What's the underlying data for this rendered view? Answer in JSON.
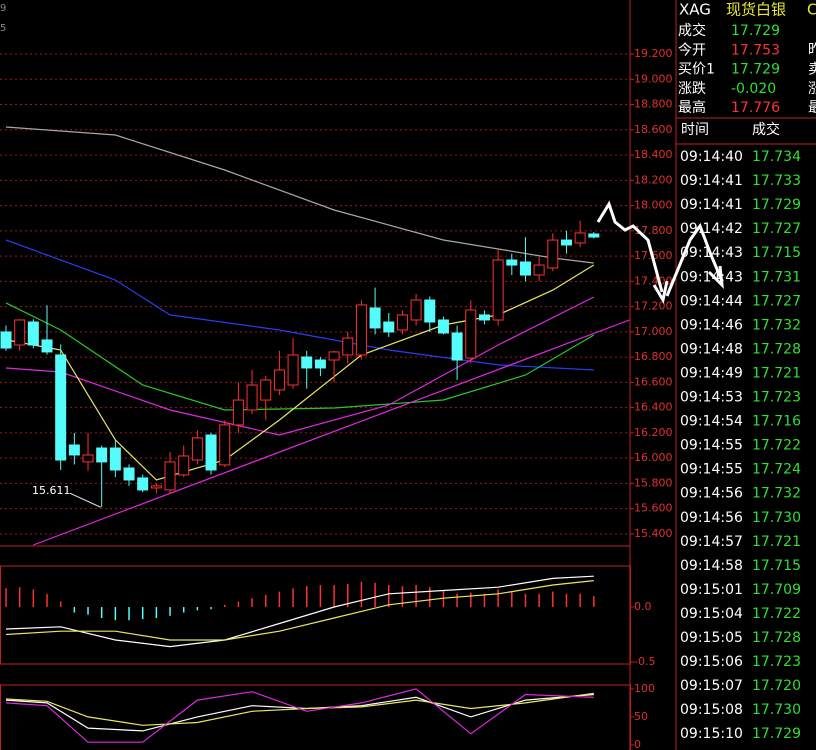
{
  "edge_text": [
    "9",
    "5"
  ],
  "chart_data": [
    {
      "type": "candlestick",
      "ylim": [
        15.312,
        19.628
      ],
      "yticks": [
        {
          "value": 15.4,
          "label": "15.400"
        },
        {
          "value": 15.6,
          "label": "15.600"
        },
        {
          "value": 15.8,
          "label": "15.800"
        },
        {
          "value": 16.0,
          "label": "16.000"
        },
        {
          "value": 16.2,
          "label": "16.200"
        },
        {
          "value": 16.4,
          "label": "16.400"
        },
        {
          "value": 16.6,
          "label": "16.600"
        },
        {
          "value": 16.8,
          "label": "16.800"
        },
        {
          "value": 17.0,
          "label": "17.000"
        },
        {
          "value": 17.2,
          "label": "17.200"
        },
        {
          "value": 17.4,
          "label": "17.400"
        },
        {
          "value": 17.6,
          "label": "17.600"
        },
        {
          "value": 17.8,
          "label": "17.800"
        },
        {
          "value": 18.0,
          "label": "18.000"
        },
        {
          "value": 18.2,
          "label": "18.200"
        },
        {
          "value": 18.4,
          "label": "18.400"
        },
        {
          "value": 18.6,
          "label": "18.600"
        },
        {
          "value": 18.8,
          "label": "18.800"
        },
        {
          "value": 19.0,
          "label": "19.000"
        },
        {
          "value": 19.2,
          "label": "19.200"
        }
      ],
      "grid": true,
      "up_color": "#ff3030",
      "down_color": "#54fcfc",
      "open": [
        16.999,
        16.896,
        17.078,
        16.936,
        16.817,
        16.104,
        15.97,
        16.08,
        16.08,
        15.922,
        15.843,
        15.764,
        15.748,
        15.867,
        15.985,
        16.183,
        15.946,
        16.263,
        16.381,
        16.46,
        16.54,
        16.579,
        16.801,
        16.777,
        16.777,
        16.817,
        16.817,
        17.189,
        17.078,
        17.015,
        17.094,
        17.252,
        17.094,
        16.991,
        16.793,
        17.134,
        17.094,
        17.569,
        17.553,
        17.45,
        17.506,
        17.727,
        17.704,
        17.775
      ],
      "high": [
        17.05,
        17.1,
        17.1,
        17.21,
        16.9,
        16.2,
        16.2,
        16.1,
        16.15,
        15.95,
        15.87,
        15.8,
        16.05,
        16.1,
        16.22,
        16.2,
        16.3,
        16.6,
        16.7,
        16.65,
        16.85,
        16.95,
        16.85,
        16.8,
        16.85,
        17.0,
        17.25,
        17.35,
        17.15,
        17.17,
        17.3,
        17.28,
        17.12,
        17.05,
        17.25,
        17.17,
        17.65,
        17.62,
        17.75,
        17.6,
        17.78,
        17.8,
        17.88,
        17.79
      ],
      "low": [
        16.85,
        16.85,
        16.87,
        16.82,
        15.906,
        15.95,
        15.9,
        15.611,
        15.85,
        15.78,
        15.73,
        15.72,
        15.716,
        15.85,
        15.95,
        15.87,
        15.93,
        16.2,
        16.35,
        16.3,
        16.5,
        16.55,
        16.55,
        16.65,
        16.6,
        16.75,
        16.78,
        16.98,
        16.96,
        16.98,
        17.05,
        17.0,
        16.98,
        16.62,
        16.75,
        17.06,
        17.05,
        17.45,
        17.4,
        17.4,
        17.48,
        17.62,
        17.67,
        17.74
      ],
      "close": [
        16.872,
        17.094,
        16.896,
        16.841,
        15.985,
        16.025,
        16.025,
        15.97,
        15.906,
        15.827,
        15.748,
        15.78,
        15.97,
        16.017,
        16.16,
        15.906,
        16.263,
        16.46,
        16.579,
        16.619,
        16.698,
        16.817,
        16.714,
        16.714,
        16.841,
        16.951,
        17.213,
        17.031,
        16.999,
        17.134,
        17.252,
        17.078,
        16.991,
        16.777,
        17.173,
        17.094,
        17.569,
        17.529,
        17.45,
        17.529,
        17.727,
        17.688,
        17.783,
        17.751
      ],
      "low_label_index": 7,
      "series": [
        {
          "color": "#a8a8a8",
          "x": [
            0,
            8,
            16,
            24,
            32,
            40,
            43
          ],
          "values": [
            18.622,
            18.559,
            18.282,
            17.965,
            17.727,
            17.585,
            17.545
          ]
        },
        {
          "color": "#2a3cf0",
          "x": [
            0,
            8,
            12,
            20,
            28,
            36,
            43
          ],
          "values": [
            17.727,
            17.411,
            17.134,
            17.015,
            16.856,
            16.738,
            16.698
          ]
        },
        {
          "color": "#28c828",
          "x": [
            0,
            4,
            10,
            16,
            24,
            32,
            38,
            43
          ],
          "values": [
            17.229,
            17.015,
            16.579,
            16.381,
            16.397,
            16.46,
            16.658,
            16.975
          ]
        },
        {
          "color": "#e028e0",
          "x": [
            0,
            4,
            12,
            20,
            28,
            36,
            43
          ],
          "values": [
            16.714,
            16.682,
            16.381,
            16.183,
            16.421,
            16.896,
            17.276
          ]
        },
        {
          "color": "#e8e860",
          "x": [
            0,
            4,
            8,
            11,
            16,
            20,
            26,
            32,
            36,
            40,
            43
          ],
          "values": [
            16.936,
            16.856,
            16.144,
            15.827,
            15.985,
            16.302,
            16.817,
            17.054,
            17.134,
            17.331,
            17.529
          ]
        },
        {
          "color": "#e028e0",
          "x": [
            2,
            45.6
          ],
          "values": [
            15.312,
            17.094
          ]
        }
      ]
    },
    {
      "type": "bar",
      "ylim": [
        -0.527,
        0.382
      ],
      "yticks": [
        {
          "value": 0,
          "label": "0.0"
        },
        {
          "value": -0.5,
          "label": "-0.5"
        }
      ],
      "up_color": "#ff3030",
      "down_color": "#54fcfc",
      "values": [
        0.17,
        0.18,
        0.16,
        0.12,
        0.05,
        -0.05,
        -0.07,
        -0.1,
        -0.12,
        -0.12,
        -0.11,
        -0.1,
        -0.08,
        -0.05,
        -0.03,
        -0.02,
        0.02,
        0.05,
        0.08,
        0.11,
        0.14,
        0.17,
        0.19,
        0.2,
        0.2,
        0.21,
        0.23,
        0.22,
        0.2,
        0.19,
        0.2,
        0.18,
        0.15,
        0.12,
        0.13,
        0.12,
        0.16,
        0.14,
        0.12,
        0.12,
        0.14,
        0.12,
        0.12,
        0.1
      ],
      "series": [
        {
          "color": "#ffffff",
          "x": [
            0,
            4,
            8,
            12,
            16,
            20,
            24,
            28,
            32,
            36,
            40,
            43
          ],
          "values": [
            -0.2,
            -0.18,
            -0.3,
            -0.36,
            -0.3,
            -0.15,
            0.0,
            0.12,
            0.15,
            0.18,
            0.26,
            0.28
          ]
        },
        {
          "color": "#e8e860",
          "x": [
            0,
            4,
            8,
            12,
            16,
            20,
            24,
            28,
            32,
            36,
            40,
            43
          ],
          "values": [
            -0.25,
            -0.22,
            -0.22,
            -0.3,
            -0.3,
            -0.22,
            -0.1,
            0.02,
            0.08,
            0.12,
            0.2,
            0.24
          ]
        }
      ]
    },
    {
      "type": "line",
      "ylim": [
        -9,
        107
      ],
      "yticks": [
        0,
        50,
        100
      ],
      "series": [
        {
          "color": "#ffffff",
          "x": [
            0,
            3,
            6,
            10,
            14,
            18,
            22,
            26,
            30,
            34,
            38,
            43
          ],
          "values": [
            80,
            75,
            30,
            25,
            50,
            70,
            65,
            70,
            85,
            50,
            80,
            90
          ]
        },
        {
          "color": "#e8e860",
          "x": [
            0,
            3,
            6,
            10,
            14,
            18,
            22,
            26,
            30,
            34,
            38,
            43
          ],
          "values": [
            82,
            78,
            50,
            35,
            40,
            60,
            65,
            68,
            80,
            65,
            75,
            92
          ]
        },
        {
          "color": "#e028e0",
          "x": [
            0,
            3,
            6,
            10,
            14,
            18,
            22,
            26,
            30,
            34,
            38,
            43
          ],
          "values": [
            75,
            70,
            5,
            5,
            80,
            95,
            60,
            75,
            100,
            20,
            90,
            85
          ]
        }
      ]
    }
  ],
  "quote": {
    "symbol": "XAG",
    "name": "现货白银",
    "tail": "C",
    "rows": [
      {
        "label": "成交",
        "value": "17.729",
        "color": "#30e030",
        "next": ""
      },
      {
        "label": "今开",
        "value": "17.753",
        "color": "#ff3030",
        "next": "昨"
      },
      {
        "label": "买价1",
        "value": "17.729",
        "color": "#30e030",
        "next": "卖"
      },
      {
        "label": "涨跌",
        "value": "-0.020",
        "color": "#30e030",
        "next": "涨"
      },
      {
        "label": "最高",
        "value": "17.776",
        "color": "#ff3030",
        "next": "最"
      }
    ]
  },
  "trades": {
    "headers": [
      "时间",
      "成交"
    ],
    "color": "#30e030",
    "rows": [
      [
        "09:14:40",
        "17.734"
      ],
      [
        "09:14:41",
        "17.733"
      ],
      [
        "09:14:41",
        "17.729"
      ],
      [
        "09:14:42",
        "17.727"
      ],
      [
        "09:14:43",
        "17.715"
      ],
      [
        "09:14:43",
        "17.731"
      ],
      [
        "09:14:44",
        "17.727"
      ],
      [
        "09:14:46",
        "17.732"
      ],
      [
        "09:14:48",
        "17.728"
      ],
      [
        "09:14:49",
        "17.721"
      ],
      [
        "09:14:53",
        "17.723"
      ],
      [
        "09:14:54",
        "17.716"
      ],
      [
        "09:14:55",
        "17.722"
      ],
      [
        "09:14:55",
        "17.724"
      ],
      [
        "09:14:56",
        "17.732"
      ],
      [
        "09:14:56",
        "17.730"
      ],
      [
        "09:14:57",
        "17.721"
      ],
      [
        "09:14:58",
        "17.715"
      ],
      [
        "09:15:01",
        "17.709"
      ],
      [
        "09:15:04",
        "17.722"
      ],
      [
        "09:15:05",
        "17.728"
      ],
      [
        "09:15:06",
        "17.723"
      ],
      [
        "09:15:07",
        "17.720"
      ],
      [
        "09:15:08",
        "17.730"
      ],
      [
        "09:15:10",
        "17.729"
      ]
    ]
  }
}
